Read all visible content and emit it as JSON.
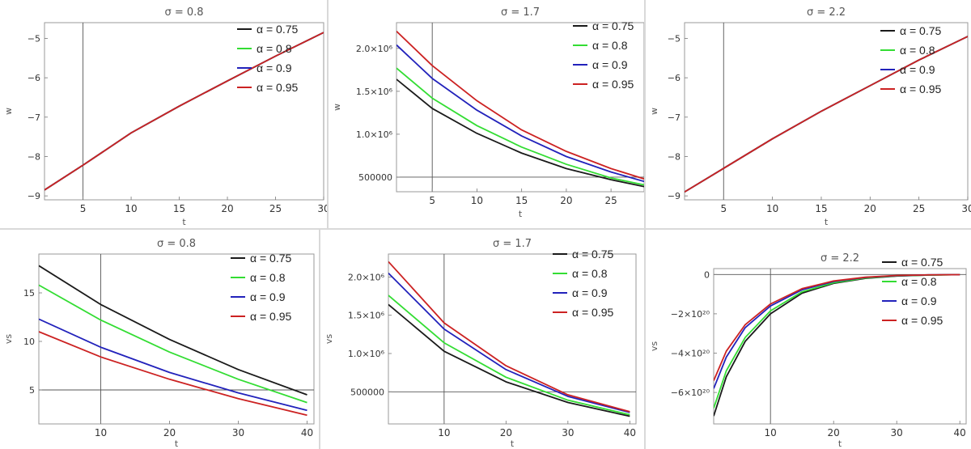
{
  "panels": [
    {
      "row": 0,
      "col": 0,
      "title": "σ = 0.8",
      "xlabel": "t",
      "ylabel": "w",
      "xlim": [
        1,
        30
      ],
      "ylim": [
        -9.1,
        -4.6
      ],
      "xticks": [
        {
          "v": 5,
          "l": "5"
        },
        {
          "v": 10,
          "l": "10"
        },
        {
          "v": 15,
          "l": "15"
        },
        {
          "v": 20,
          "l": "20"
        },
        {
          "v": 25,
          "l": "25"
        },
        {
          "v": 30,
          "l": "30"
        }
      ],
      "yticks": [
        {
          "v": -9,
          "l": "−9"
        },
        {
          "v": -8,
          "l": "−8"
        },
        {
          "v": -7,
          "l": "−7"
        },
        {
          "v": -6,
          "l": "−6"
        },
        {
          "v": -5,
          "l": "−5"
        }
      ],
      "vline": 5,
      "hline": null,
      "legend": [
        "α = 0.75",
        "α = 0.8",
        "α = 0.9",
        "α = 0.95"
      ],
      "series": [
        {
          "name": "α = 0.75",
          "color": "#1a1a1a",
          "x": [
            1,
            5,
            10,
            15,
            20,
            25,
            30
          ],
          "y": [
            -8.85,
            -8.22,
            -7.4,
            -6.72,
            -6.08,
            -5.45,
            -4.85
          ]
        },
        {
          "name": "α = 0.8",
          "color": "#33dd33",
          "x": [
            1,
            5,
            10,
            15,
            20,
            25,
            30
          ],
          "y": [
            -8.85,
            -8.22,
            -7.4,
            -6.72,
            -6.08,
            -5.45,
            -4.85
          ]
        },
        {
          "name": "α = 0.9",
          "color": "#2222bb",
          "x": [
            1,
            5,
            10,
            15,
            20,
            25,
            30
          ],
          "y": [
            -8.85,
            -8.22,
            -7.4,
            -6.72,
            -6.08,
            -5.45,
            -4.85
          ]
        },
        {
          "name": "α = 0.95",
          "color": "#cc2222",
          "x": [
            1,
            5,
            10,
            15,
            20,
            25,
            30
          ],
          "y": [
            -8.85,
            -8.22,
            -7.4,
            -6.72,
            -6.08,
            -5.45,
            -4.85
          ]
        }
      ]
    },
    {
      "row": 0,
      "col": 1,
      "title": "σ = 1.7",
      "xlabel": "t",
      "ylabel": "w",
      "xlim": [
        1,
        28.7
      ],
      "ylim": [
        330000,
        2300000
      ],
      "xticks": [
        {
          "v": 5,
          "l": "5"
        },
        {
          "v": 10,
          "l": "10"
        },
        {
          "v": 15,
          "l": "15"
        },
        {
          "v": 20,
          "l": "20"
        },
        {
          "v": 25,
          "l": "25"
        }
      ],
      "yticks": [
        {
          "v": 500000,
          "l": "500000"
        },
        {
          "v": 1000000,
          "l": "1.0×10⁶"
        },
        {
          "v": 1500000,
          "l": "1.5×10⁶"
        },
        {
          "v": 2000000,
          "l": "2.0×10⁶"
        }
      ],
      "vline": 5,
      "hline": 500000,
      "legend": [
        "α = 0.75",
        "α = 0.8",
        "α = 0.9",
        "α = 0.95"
      ],
      "series": [
        {
          "name": "α = 0.75",
          "color": "#1a1a1a",
          "x": [
            1,
            5,
            10,
            15,
            20,
            25,
            28.7
          ],
          "y": [
            1640000,
            1300000,
            1010000,
            780000,
            600000,
            470000,
            390000
          ]
        },
        {
          "name": "α = 0.8",
          "color": "#33dd33",
          "x": [
            1,
            5,
            10,
            15,
            20,
            25,
            28.7
          ],
          "y": [
            1770000,
            1420000,
            1100000,
            850000,
            650000,
            490000,
            410000
          ]
        },
        {
          "name": "α = 0.9",
          "color": "#2222bb",
          "x": [
            1,
            5,
            10,
            15,
            20,
            25,
            28.7
          ],
          "y": [
            2040000,
            1650000,
            1280000,
            980000,
            740000,
            560000,
            450000
          ]
        },
        {
          "name": "α = 0.95",
          "color": "#cc2222",
          "x": [
            1,
            5,
            10,
            15,
            20,
            25,
            28.7
          ],
          "y": [
            2200000,
            1800000,
            1390000,
            1050000,
            800000,
            600000,
            480000
          ]
        }
      ]
    },
    {
      "row": 0,
      "col": 2,
      "title": "σ = 2.2",
      "xlabel": "t",
      "ylabel": "w",
      "xlim": [
        1,
        30
      ],
      "ylim": [
        -9.1,
        -4.6
      ],
      "xticks": [
        {
          "v": 5,
          "l": "5"
        },
        {
          "v": 10,
          "l": "10"
        },
        {
          "v": 15,
          "l": "15"
        },
        {
          "v": 20,
          "l": "20"
        },
        {
          "v": 25,
          "l": "25"
        },
        {
          "v": 30,
          "l": "30"
        }
      ],
      "yticks": [
        {
          "v": -9,
          "l": "−9"
        },
        {
          "v": -8,
          "l": "−8"
        },
        {
          "v": -7,
          "l": "−7"
        },
        {
          "v": -6,
          "l": "−6"
        },
        {
          "v": -5,
          "l": "−5"
        }
      ],
      "vline": 5,
      "hline": null,
      "legend": [
        "α = 0.75",
        "α = 0.8",
        "α = 0.9",
        "α = 0.95"
      ],
      "series": [
        {
          "name": "α = 0.75",
          "color": "#1a1a1a",
          "x": [
            1,
            5,
            10,
            15,
            20,
            25,
            30
          ],
          "y": [
            -8.9,
            -8.3,
            -7.55,
            -6.85,
            -6.2,
            -5.55,
            -4.95
          ]
        },
        {
          "name": "α = 0.8",
          "color": "#33dd33",
          "x": [
            1,
            5,
            10,
            15,
            20,
            25,
            30
          ],
          "y": [
            -8.9,
            -8.3,
            -7.55,
            -6.85,
            -6.2,
            -5.55,
            -4.95
          ]
        },
        {
          "name": "α = 0.9",
          "color": "#2222bb",
          "x": [
            1,
            5,
            10,
            15,
            20,
            25,
            30
          ],
          "y": [
            -8.9,
            -8.3,
            -7.55,
            -6.85,
            -6.2,
            -5.55,
            -4.95
          ]
        },
        {
          "name": "α = 0.95",
          "color": "#cc2222",
          "x": [
            1,
            5,
            10,
            15,
            20,
            25,
            30
          ],
          "y": [
            -8.9,
            -8.3,
            -7.55,
            -6.85,
            -6.2,
            -5.55,
            -4.95
          ]
        }
      ]
    },
    {
      "row": 1,
      "col": 0,
      "title": "σ = 0.8",
      "xlabel": "t",
      "ylabel": "vs",
      "xlim": [
        1,
        41
      ],
      "ylim": [
        1.5,
        19
      ],
      "xticks": [
        {
          "v": 10,
          "l": "10"
        },
        {
          "v": 20,
          "l": "20"
        },
        {
          "v": 30,
          "l": "30"
        },
        {
          "v": 40,
          "l": "40"
        }
      ],
      "yticks": [
        {
          "v": 5,
          "l": "5"
        },
        {
          "v": 10,
          "l": "10"
        },
        {
          "v": 15,
          "l": "15"
        }
      ],
      "vline": 10,
      "hline": 5,
      "legend": [
        "α = 0.75",
        "α = 0.8",
        "α = 0.9",
        "α = 0.95"
      ],
      "series": [
        {
          "name": "α = 0.75",
          "color": "#1a1a1a",
          "x": [
            1,
            10,
            20,
            30,
            40
          ],
          "y": [
            17.8,
            13.8,
            10.2,
            7.1,
            4.5
          ]
        },
        {
          "name": "α = 0.8",
          "color": "#33dd33",
          "x": [
            1,
            10,
            20,
            30,
            40
          ],
          "y": [
            15.8,
            12.2,
            8.9,
            6.1,
            3.7
          ]
        },
        {
          "name": "α = 0.9",
          "color": "#2222bb",
          "x": [
            1,
            10,
            20,
            30,
            40
          ],
          "y": [
            12.3,
            9.4,
            6.8,
            4.7,
            2.9
          ]
        },
        {
          "name": "α = 0.95",
          "color": "#cc2222",
          "x": [
            1,
            10,
            20,
            30,
            40
          ],
          "y": [
            11,
            8.4,
            6.1,
            4.1,
            2.4
          ]
        }
      ]
    },
    {
      "row": 1,
      "col": 1,
      "title": "σ = 1.7",
      "xlabel": "t",
      "ylabel": "vs",
      "xlim": [
        1,
        41
      ],
      "ylim": [
        80000,
        2300000
      ],
      "xticks": [
        {
          "v": 10,
          "l": "10"
        },
        {
          "v": 20,
          "l": "20"
        },
        {
          "v": 30,
          "l": "30"
        },
        {
          "v": 40,
          "l": "40"
        }
      ],
      "yticks": [
        {
          "v": 500000,
          "l": "500000"
        },
        {
          "v": 1000000,
          "l": "1.0×10⁶"
        },
        {
          "v": 1500000,
          "l": "1.5×10⁶"
        },
        {
          "v": 2000000,
          "l": "2.0×10⁶"
        }
      ],
      "vline": 10,
      "hline": 500000,
      "legend": [
        "α = 0.75",
        "α = 0.8",
        "α = 0.9",
        "α = 0.95"
      ],
      "series": [
        {
          "name": "α = 0.75",
          "color": "#1a1a1a",
          "x": [
            1,
            10,
            20,
            30,
            40
          ],
          "y": [
            1640000,
            1030000,
            630000,
            360000,
            180000
          ]
        },
        {
          "name": "α = 0.8",
          "color": "#33dd33",
          "x": [
            1,
            10,
            20,
            30,
            40
          ],
          "y": [
            1760000,
            1140000,
            690000,
            390000,
            200000
          ]
        },
        {
          "name": "α = 0.9",
          "color": "#2222bb",
          "x": [
            1,
            10,
            20,
            30,
            40
          ],
          "y": [
            2050000,
            1320000,
            790000,
            440000,
            230000
          ]
        },
        {
          "name": "α = 0.95",
          "color": "#cc2222",
          "x": [
            1,
            10,
            20,
            30,
            40
          ],
          "y": [
            2200000,
            1400000,
            840000,
            460000,
            240000
          ]
        }
      ]
    },
    {
      "row": 1,
      "col": 2,
      "title": "σ = 2.2",
      "xlabel": "t",
      "ylabel": "vs",
      "xlim": [
        1,
        41
      ],
      "ylim": [
        -7.6e+20,
        3e+19
      ],
      "xticks": [
        {
          "v": 10,
          "l": "10"
        },
        {
          "v": 20,
          "l": "20"
        },
        {
          "v": 30,
          "l": "30"
        },
        {
          "v": 40,
          "l": "40"
        }
      ],
      "yticks": [
        {
          "v": 0,
          "l": "0"
        },
        {
          "v": -2e+20,
          "l": "−2×10²⁰"
        },
        {
          "v": -4e+20,
          "l": "−4×10²⁰"
        },
        {
          "v": -6e+20,
          "l": "−6×10²⁰"
        }
      ],
      "vline": 10,
      "hline": 0,
      "legend": [
        "α = 0.75",
        "α = 0.8",
        "α = 0.9",
        "α = 0.95"
      ],
      "series": [
        {
          "name": "α = 0.75",
          "color": "#1a1a1a",
          "x": [
            1,
            3,
            6,
            10,
            15,
            20,
            25,
            30,
            35,
            40
          ],
          "y": [
            -7.2e+20,
            -5.2e+20,
            -3.4e+20,
            -2e+20,
            -9.5e+19,
            -4.5e+19,
            -2e+19,
            -8e+18,
            -3e+18,
            -1e+18
          ]
        },
        {
          "name": "α = 0.8",
          "color": "#33dd33",
          "x": [
            1,
            3,
            6,
            10,
            15,
            20,
            25,
            30,
            35,
            40
          ],
          "y": [
            -6.8e+20,
            -4.9e+20,
            -3.2e+20,
            -1.85e+20,
            -8.8e+19,
            -4.2e+19,
            -1.8e+19,
            -7e+18,
            -3e+18,
            -1e+18
          ]
        },
        {
          "name": "α = 0.9",
          "color": "#2222bb",
          "x": [
            1,
            3,
            6,
            10,
            15,
            20,
            25,
            30,
            35,
            40
          ],
          "y": [
            -5.8e+20,
            -4.2e+20,
            -2.7e+20,
            -1.6e+20,
            -7.8e+19,
            -3.6e+19,
            -1.5e+19,
            -6e+18,
            -2e+18,
            -1e+18
          ]
        },
        {
          "name": "α = 0.95",
          "color": "#cc2222",
          "x": [
            1,
            3,
            6,
            10,
            15,
            20,
            25,
            30,
            35,
            40
          ],
          "y": [
            -5.4e+20,
            -3.9e+20,
            -2.55e+20,
            -1.5e+20,
            -7.2e+19,
            -3.3e+19,
            -1.4e+19,
            -5e+18,
            -2e+18,
            -1e+18
          ]
        }
      ]
    }
  ]
}
